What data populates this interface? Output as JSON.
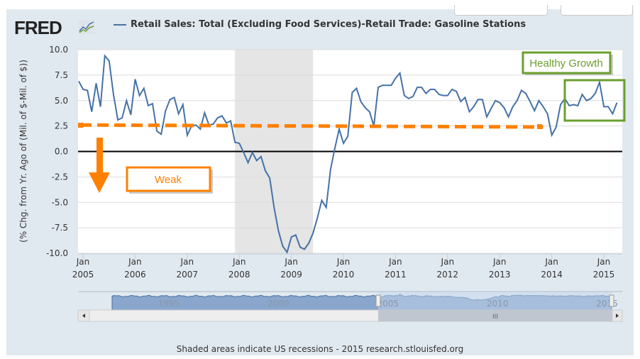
{
  "logo": "FRED",
  "legend": {
    "label": "Retail Sales: Total (Excluding Food Services)-Retail Trade: Gasoline Stations",
    "color": "#4572a7"
  },
  "footer": "Shaded areas indicate US recessions - 2015 research.stlouisfed.org",
  "annotations": {
    "weak": "Weak",
    "healthy": "Healthy Growth",
    "orange": "#ff8000",
    "green": "#6a9f2f"
  },
  "navigator": {
    "labels": [
      "1995",
      "2000",
      "2005",
      "2010",
      "2015"
    ]
  },
  "chart_data": {
    "type": "line",
    "ylabel": "(% Chg. from Yr. Ago of (Mil. of $-Mil. of $))",
    "ylim": [
      -10,
      10
    ],
    "yticks": [
      "10.0",
      "7.5",
      "5.0",
      "2.5",
      "0.0",
      "-2.5",
      "-5.0",
      "-7.5",
      "-10.0"
    ],
    "xticks": [
      {
        "m": "Jan",
        "y": "2005"
      },
      {
        "m": "Jan",
        "y": "2006"
      },
      {
        "m": "Jan",
        "y": "2007"
      },
      {
        "m": "Jan",
        "y": "2008"
      },
      {
        "m": "Jan",
        "y": "2009"
      },
      {
        "m": "Jan",
        "y": "2010"
      },
      {
        "m": "Jan",
        "y": "2011"
      },
      {
        "m": "Jan",
        "y": "2012"
      },
      {
        "m": "Jan",
        "y": "2013"
      },
      {
        "m": "Jan",
        "y": "2014"
      },
      {
        "m": "Jan",
        "y": "2015"
      }
    ],
    "start": "2005-01",
    "frequency": "monthly",
    "recessions": [
      [
        "2007-12",
        "2009-06"
      ]
    ],
    "grid": true,
    "series": [
      {
        "name": "Retail Sales: Total (Excluding Food Services)-Retail Trade: Gasoline Stations",
        "color": "#4572a7",
        "values": [
          6.9,
          6.1,
          6.0,
          3.9,
          6.7,
          4.4,
          9.4,
          8.9,
          5.6,
          3.1,
          3.3,
          5.0,
          3.6,
          7.1,
          5.5,
          6.2,
          4.5,
          4.7,
          2.0,
          1.7,
          4.0,
          5.1,
          5.3,
          3.7,
          4.6,
          1.6,
          2.5,
          2.6,
          2.2,
          3.8,
          2.6,
          2.7,
          3.3,
          3.5,
          2.8,
          3.0,
          0.9,
          0.8,
          -0.1,
          -1.1,
          -0.1,
          -0.9,
          -0.5,
          -1.9,
          -2.6,
          -5.5,
          -7.8,
          -9.3,
          -9.9,
          -8.4,
          -8.2,
          -9.4,
          -9.6,
          -9.0,
          -8.0,
          -6.5,
          -4.8,
          -5.5,
          -1.8,
          0.3,
          2.2,
          0.8,
          1.5,
          5.8,
          6.2,
          4.9,
          4.3,
          3.9,
          2.5,
          6.3,
          6.5,
          6.5,
          6.5,
          7.2,
          7.7,
          5.5,
          5.2,
          5.4,
          6.3,
          6.3,
          5.7,
          6.1,
          6.1,
          5.6,
          5.5,
          5.5,
          6.1,
          5.9,
          4.9,
          5.3,
          3.9,
          4.4,
          5.1,
          5.1,
          3.4,
          4.2,
          5.0,
          4.8,
          4.3,
          3.4,
          4.4,
          5.0,
          6.0,
          5.7,
          4.9,
          4.0,
          5.0,
          4.4,
          3.7,
          1.6,
          2.4,
          4.6,
          5.2,
          4.5,
          4.6,
          4.5,
          5.6,
          5.0,
          5.2,
          5.7,
          6.8,
          4.4,
          4.4,
          3.7,
          4.8
        ]
      }
    ],
    "reference_line": {
      "from": "2005-01",
      "to": "2013-11",
      "y_start": 2.6,
      "y_end": 2.4
    }
  }
}
